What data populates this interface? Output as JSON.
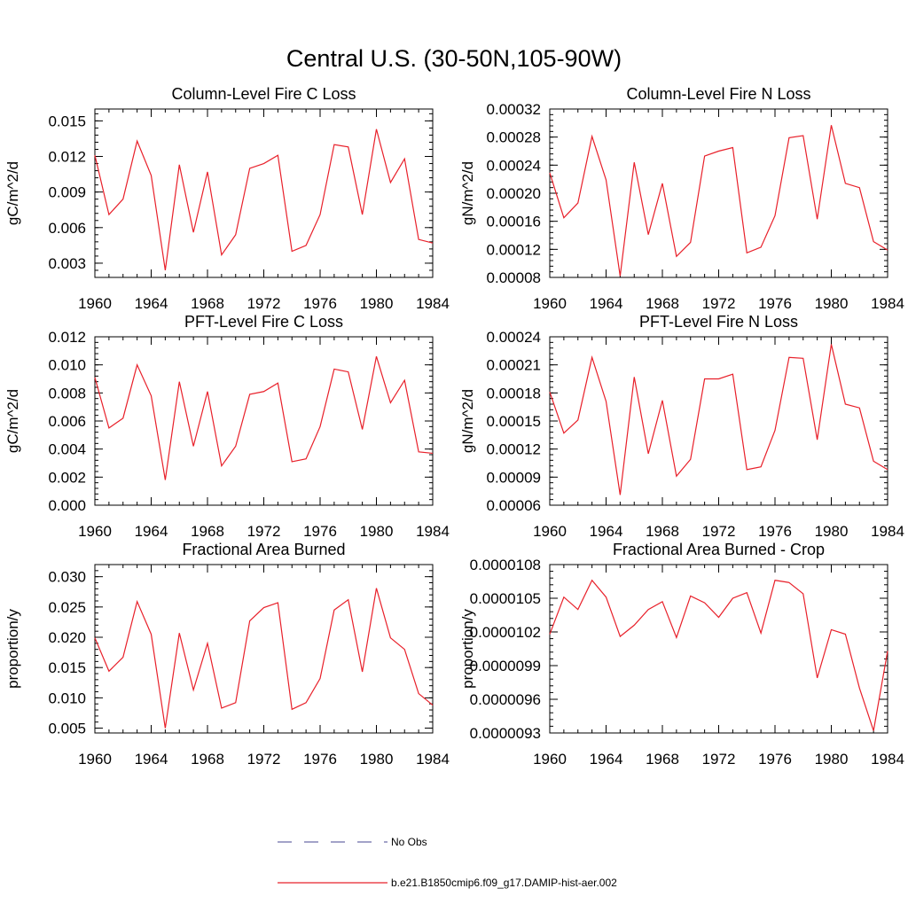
{
  "figure": {
    "title": "Central U.S. (30-50N,105-90W)",
    "legend": [
      {
        "label": "No Obs",
        "style": "dashed",
        "color": "#6c6ca8"
      },
      {
        "label": "b.e21.B1850cmip6.f09_g17.DAMIP-hist-aer.002",
        "style": "solid",
        "color": "#e8202a"
      }
    ]
  },
  "chart_data": [
    {
      "type": "line",
      "title": "Column-Level Fire C Loss",
      "ylabel": "gC/m^2/d",
      "xlim": [
        1960,
        1984
      ],
      "ylim": [
        0.0018,
        0.016
      ],
      "xticks": [
        1960,
        1964,
        1968,
        1972,
        1976,
        1980,
        1984
      ],
      "yticks": [
        0.003,
        0.006,
        0.009,
        0.012,
        0.015
      ],
      "ytick_labels": [
        "0.003",
        "0.006",
        "0.009",
        "0.012",
        "0.015"
      ],
      "series": [
        {
          "color": "#e8202a",
          "x": [
            1960,
            1961,
            1962,
            1963,
            1964,
            1965,
            1966,
            1967,
            1968,
            1969,
            1970,
            1971,
            1972,
            1973,
            1974,
            1975,
            1976,
            1977,
            1978,
            1979,
            1980,
            1981,
            1982,
            1983,
            1984
          ],
          "y": [
            0.0121,
            0.0071,
            0.0084,
            0.0133,
            0.0104,
            0.0024,
            0.0113,
            0.0056,
            0.0107,
            0.0037,
            0.0054,
            0.011,
            0.0114,
            0.0121,
            0.004,
            0.0045,
            0.0071,
            0.013,
            0.0128,
            0.0071,
            0.0143,
            0.0098,
            0.0118,
            0.005,
            0.0047
          ]
        }
      ]
    },
    {
      "type": "line",
      "title": "Column-Level Fire N Loss",
      "ylabel": "gN/m^2/d",
      "xlim": [
        1960,
        1984
      ],
      "ylim": [
        8e-05,
        0.00032
      ],
      "xticks": [
        1960,
        1964,
        1968,
        1972,
        1976,
        1980,
        1984
      ],
      "yticks": [
        8e-05,
        0.00012,
        0.00016,
        0.0002,
        0.00024,
        0.00028,
        0.00032
      ],
      "ytick_labels": [
        "0.00008",
        "0.00012",
        "0.00016",
        "0.00020",
        "0.00024",
        "0.00028",
        "0.00032"
      ],
      "series": [
        {
          "color": "#e8202a",
          "x": [
            1960,
            1961,
            1962,
            1963,
            1964,
            1965,
            1966,
            1967,
            1968,
            1969,
            1970,
            1971,
            1972,
            1973,
            1974,
            1975,
            1976,
            1977,
            1978,
            1979,
            1980,
            1981,
            1982,
            1983,
            1984
          ],
          "y": [
            0.000229,
            0.000165,
            0.000186,
            0.000281,
            0.000219,
            8.2e-05,
            0.000244,
            0.000141,
            0.000214,
            0.00011,
            0.00013,
            0.000253,
            0.00026,
            0.000265,
            0.000115,
            0.000123,
            0.000168,
            0.000279,
            0.000282,
            0.000163,
            0.000297,
            0.000214,
            0.000208,
            0.000131,
            0.000119
          ]
        }
      ]
    },
    {
      "type": "line",
      "title": "PFT-Level Fire C Loss",
      "ylabel": "gC/m^2/d",
      "xlim": [
        1960,
        1984
      ],
      "ylim": [
        0.0,
        0.012
      ],
      "xticks": [
        1960,
        1964,
        1968,
        1972,
        1976,
        1980,
        1984
      ],
      "yticks": [
        0.0,
        0.002,
        0.004,
        0.006,
        0.008,
        0.01,
        0.012
      ],
      "ytick_labels": [
        "0.000",
        "0.002",
        "0.004",
        "0.006",
        "0.008",
        "0.010",
        "0.012"
      ],
      "series": [
        {
          "color": "#e8202a",
          "x": [
            1960,
            1961,
            1962,
            1963,
            1964,
            1965,
            1966,
            1967,
            1968,
            1969,
            1970,
            1971,
            1972,
            1973,
            1974,
            1975,
            1976,
            1977,
            1978,
            1979,
            1980,
            1981,
            1982,
            1983,
            1984
          ],
          "y": [
            0.0091,
            0.0055,
            0.0062,
            0.01,
            0.0078,
            0.0018,
            0.0088,
            0.0042,
            0.0081,
            0.0028,
            0.0042,
            0.0079,
            0.0081,
            0.0087,
            0.0031,
            0.0033,
            0.0056,
            0.0097,
            0.0095,
            0.0054,
            0.0106,
            0.0073,
            0.0089,
            0.0038,
            0.0037
          ]
        }
      ]
    },
    {
      "type": "line",
      "title": "PFT-Level Fire N Loss",
      "ylabel": "gN/m^2/d",
      "xlim": [
        1960,
        1984
      ],
      "ylim": [
        6e-05,
        0.00024
      ],
      "xticks": [
        1960,
        1964,
        1968,
        1972,
        1976,
        1980,
        1984
      ],
      "yticks": [
        6e-05,
        9e-05,
        0.00012,
        0.00015,
        0.00018,
        0.00021,
        0.00024
      ],
      "ytick_labels": [
        "0.00006",
        "0.00009",
        "0.00012",
        "0.00015",
        "0.00018",
        "0.00021",
        "0.00024"
      ],
      "series": [
        {
          "color": "#e8202a",
          "x": [
            1960,
            1961,
            1962,
            1963,
            1964,
            1965,
            1966,
            1967,
            1968,
            1969,
            1970,
            1971,
            1972,
            1973,
            1974,
            1975,
            1976,
            1977,
            1978,
            1979,
            1980,
            1981,
            1982,
            1983,
            1984
          ],
          "y": [
            0.000181,
            0.000137,
            0.000151,
            0.000218,
            0.000171,
            7.1e-05,
            0.000197,
            0.000115,
            0.000172,
            9.1e-05,
            0.000109,
            0.000195,
            0.000195,
            0.0002,
            9.8e-05,
            0.000101,
            0.00014,
            0.000218,
            0.000217,
            0.00013,
            0.000232,
            0.000168,
            0.000164,
            0.000107,
            9.8e-05
          ]
        }
      ]
    },
    {
      "type": "line",
      "title": "Fractional Area Burned",
      "ylabel": "proportion/y",
      "xlim": [
        1960,
        1984
      ],
      "ylim": [
        0.0042,
        0.032
      ],
      "xticks": [
        1960,
        1964,
        1968,
        1972,
        1976,
        1980,
        1984
      ],
      "yticks": [
        0.005,
        0.01,
        0.015,
        0.02,
        0.025,
        0.03
      ],
      "ytick_labels": [
        "0.005",
        "0.010",
        "0.015",
        "0.020",
        "0.025",
        "0.030"
      ],
      "series": [
        {
          "color": "#e8202a",
          "x": [
            1960,
            1961,
            1962,
            1963,
            1964,
            1965,
            1966,
            1967,
            1968,
            1969,
            1970,
            1971,
            1972,
            1973,
            1974,
            1975,
            1976,
            1977,
            1978,
            1979,
            1980,
            1981,
            1982,
            1983,
            1984
          ],
          "y": [
            0.0199,
            0.0144,
            0.0167,
            0.0259,
            0.0205,
            0.005,
            0.0207,
            0.0113,
            0.019,
            0.0083,
            0.0092,
            0.0227,
            0.0249,
            0.0257,
            0.0081,
            0.0092,
            0.0132,
            0.0245,
            0.0262,
            0.0143,
            0.0281,
            0.0199,
            0.018,
            0.0107,
            0.0088
          ]
        }
      ]
    },
    {
      "type": "line",
      "title": "Fractional Area Burned - Crop",
      "ylabel": "proportion/y",
      "xlim": [
        1960,
        1984
      ],
      "ylim": [
        9.3e-06,
        1.08e-05
      ],
      "xticks": [
        1960,
        1964,
        1968,
        1972,
        1976,
        1980,
        1984
      ],
      "yticks": [
        9.3e-06,
        9.6e-06,
        9.9e-06,
        1.02e-05,
        1.05e-05,
        1.08e-05
      ],
      "ytick_labels": [
        "0.0000093",
        "0.0000096",
        "0.0000099",
        "0.0000102",
        "0.0000105",
        "0.0000108"
      ],
      "series": [
        {
          "color": "#e8202a",
          "x": [
            1960,
            1961,
            1962,
            1963,
            1964,
            1965,
            1966,
            1967,
            1968,
            1969,
            1970,
            1971,
            1972,
            1973,
            1974,
            1975,
            1976,
            1977,
            1978,
            1979,
            1980,
            1981,
            1982,
            1983,
            1984
          ],
          "y": [
            1.018e-05,
            1.051e-05,
            1.04e-05,
            1.066e-05,
            1.051e-05,
            1.016e-05,
            1.026e-05,
            1.04e-05,
            1.047e-05,
            1.015e-05,
            1.052e-05,
            1.046e-05,
            1.033e-05,
            1.05e-05,
            1.055e-05,
            1.019e-05,
            1.066e-05,
            1.064e-05,
            1.054e-05,
            9.79e-06,
            1.022e-05,
            1.018e-05,
            9.7e-06,
            9.32e-06,
            1.003e-05
          ]
        }
      ]
    }
  ]
}
